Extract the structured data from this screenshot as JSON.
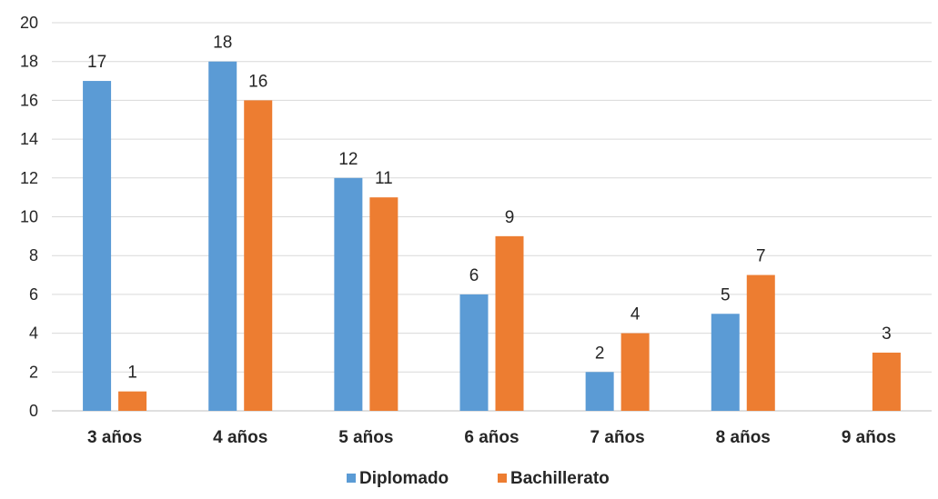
{
  "chart_data": {
    "type": "bar",
    "title": "",
    "xlabel": "",
    "ylabel": "",
    "categories": [
      "3 años",
      "4 años",
      "5 años",
      "6 años",
      "7 años",
      "8 años",
      "9 años"
    ],
    "series": [
      {
        "name": "Diplomado",
        "color": "#5b9bd5",
        "values": [
          17,
          18,
          12,
          6,
          2,
          5,
          null
        ]
      },
      {
        "name": "Bachillerato",
        "color": "#ed7d31",
        "values": [
          1,
          16,
          11,
          9,
          4,
          7,
          3
        ]
      }
    ],
    "ylim": [
      0,
      20
    ],
    "yticks": [
      0,
      2,
      4,
      6,
      8,
      10,
      12,
      14,
      16,
      18,
      20
    ],
    "grid": true,
    "data_labels": true,
    "legend_position": "bottom"
  }
}
